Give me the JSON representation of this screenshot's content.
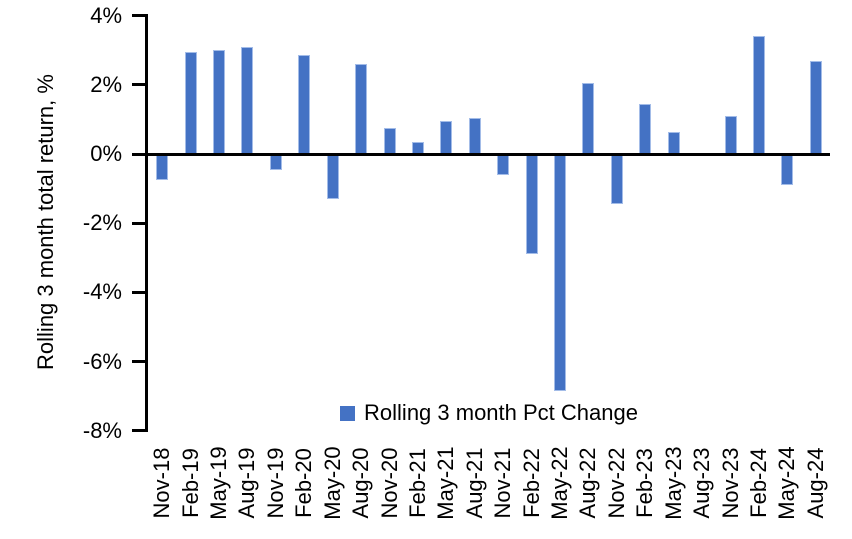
{
  "chart_data": {
    "type": "bar",
    "title": "",
    "xlabel": "",
    "ylabel": "Rolling 3 month total return, %",
    "legend_label": "Rolling 3 month Pct Change",
    "legend_position": "bottom-center",
    "grid": false,
    "bar_color": "#4472C4",
    "bar_edge_color": "#A3BCE8",
    "axis_color": "#000000",
    "ylim": [
      -8,
      4
    ],
    "yticks": [
      {
        "value": 4,
        "label": "4%"
      },
      {
        "value": 2,
        "label": "2%"
      },
      {
        "value": 0,
        "label": "0%"
      },
      {
        "value": -2,
        "label": "-2%"
      },
      {
        "value": -4,
        "label": "-4%"
      },
      {
        "value": -6,
        "label": "-6%"
      },
      {
        "value": -8,
        "label": "-8%"
      }
    ],
    "categories": [
      "Nov-18",
      "Feb-19",
      "May-19",
      "Aug-19",
      "Nov-19",
      "Feb-20",
      "May-20",
      "Aug-20",
      "Nov-20",
      "Feb-21",
      "May-21",
      "Aug-21",
      "Nov-21",
      "Feb-22",
      "May-22",
      "Aug-22",
      "Nov-22",
      "Feb-23",
      "May-23",
      "Aug-23",
      "Nov-23",
      "Feb-24",
      "May-24",
      "Aug-24"
    ],
    "series": [
      {
        "name": "Rolling 3 month Pct Change",
        "values": [
          -0.75,
          2.95,
          3.0,
          3.1,
          -0.45,
          2.85,
          -1.3,
          2.6,
          0.75,
          0.35,
          0.95,
          1.05,
          -0.6,
          -2.9,
          -6.85,
          2.05,
          -1.45,
          1.45,
          0.65,
          0.0,
          1.1,
          3.4,
          -0.9,
          2.7
        ]
      }
    ]
  }
}
